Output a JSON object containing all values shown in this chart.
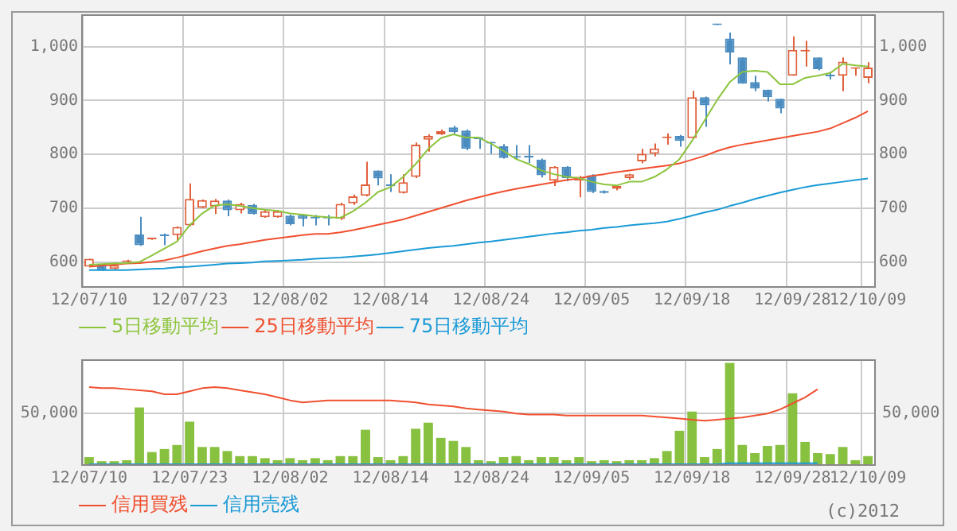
{
  "chart_data": [
    {
      "type": "candlestick",
      "categories": [
        "12/07/10",
        null,
        null,
        null,
        null,
        null,
        null,
        null,
        "12/07/23",
        null,
        null,
        null,
        null,
        null,
        null,
        null,
        "12/08/02",
        null,
        null,
        null,
        null,
        null,
        null,
        null,
        "12/08/14",
        null,
        null,
        null,
        null,
        null,
        null,
        null,
        "12/08/24",
        null,
        null,
        null,
        null,
        null,
        null,
        null,
        "12/09/05",
        null,
        null,
        null,
        null,
        null,
        null,
        null,
        "12/09/18",
        null,
        null,
        null,
        null,
        null,
        null,
        null,
        "12/09/28",
        null,
        null,
        null,
        null,
        null,
        "12/10/09"
      ],
      "ohlc": [
        [
          591,
          606,
          591,
          606
        ],
        [
          596,
          596,
          583,
          585
        ],
        [
          587,
          599,
          586,
          594
        ],
        [
          600,
          604,
          598,
          602
        ],
        [
          651,
          684,
          630,
          631
        ],
        [
          642,
          645,
          641,
          644
        ],
        [
          650,
          653,
          631,
          648
        ],
        [
          650,
          666,
          639,
          665
        ],
        [
          668,
          746,
          666,
          717
        ],
        [
          701,
          716,
          700,
          715
        ],
        [
          703,
          717,
          689,
          714
        ],
        [
          714,
          716,
          685,
          696
        ],
        [
          696,
          710,
          690,
          708
        ],
        [
          706,
          708,
          688,
          689
        ],
        [
          683,
          696,
          682,
          694
        ],
        [
          683,
          696,
          682,
          694
        ],
        [
          686,
          688,
          668,
          670
        ],
        [
          687,
          688,
          666,
          680
        ],
        [
          683,
          687,
          668,
          681
        ],
        [
          683,
          687,
          668,
          681
        ],
        [
          680,
          710,
          678,
          708
        ],
        [
          709,
          725,
          706,
          722
        ],
        [
          723,
          786,
          722,
          744
        ],
        [
          770,
          770,
          742,
          755
        ],
        [
          743,
          763,
          730,
          741
        ],
        [
          728,
          763,
          727,
          748
        ],
        [
          758,
          822,
          756,
          818
        ],
        [
          827,
          837,
          805,
          834
        ],
        [
          837,
          846,
          836,
          843
        ],
        [
          850,
          853,
          838,
          841
        ],
        [
          844,
          846,
          808,
          810
        ],
        [
          830,
          832,
          810,
          828
        ],
        [
          822,
          823,
          801,
          820
        ],
        [
          815,
          819,
          792,
          793
        ],
        [
          796,
          817,
          791,
          794
        ],
        [
          797,
          817,
          784,
          794
        ],
        [
          790,
          792,
          757,
          761
        ],
        [
          751,
          778,
          741,
          777
        ],
        [
          777,
          778,
          750,
          756
        ],
        [
          751,
          760,
          720,
          758
        ],
        [
          761,
          763,
          728,
          730
        ],
        [
          732,
          733,
          727,
          728
        ],
        [
          736,
          742,
          733,
          741
        ],
        [
          756,
          764,
          753,
          763
        ],
        [
          787,
          810,
          783,
          801
        ],
        [
          801,
          820,
          796,
          811
        ],
        [
          830,
          839,
          818,
          832
        ],
        [
          834,
          836,
          814,
          825
        ],
        [
          830,
          918,
          829,
          906
        ],
        [
          906,
          907,
          851,
          891
        ],
        [
          1041,
          1041,
          1040,
          1040
        ],
        [
          1015,
          1026,
          967,
          989
        ],
        [
          980,
          980,
          931,
          931
        ],
        [
          934,
          946,
          917,
          922
        ],
        [
          920,
          920,
          898,
          906
        ],
        [
          903,
          903,
          876,
          885
        ],
        [
          946,
          1019,
          946,
          994
        ],
        [
          991,
          1011,
          963,
          993
        ],
        [
          980,
          980,
          956,
          958
        ],
        [
          946,
          953,
          939,
          945
        ],
        [
          946,
          980,
          917,
          972
        ],
        [
          959,
          961,
          946,
          960
        ],
        [
          942,
          971,
          932,
          961
        ]
      ],
      "series": [
        {
          "name": "5日移動平均",
          "type": "line",
          "color": "#8cc43c",
          "values": [
            595,
            596,
            597,
            598,
            600,
            612,
            625,
            638,
            668,
            690,
            705,
            707,
            704,
            700,
            697,
            695,
            690,
            688,
            685,
            683,
            682,
            694,
            710,
            730,
            739,
            758,
            782,
            810,
            830,
            837,
            831,
            831,
            820,
            806,
            791,
            782,
            770,
            763,
            758,
            756,
            749,
            744,
            742,
            749,
            749,
            758,
            772,
            791,
            825,
            863,
            901,
            934,
            953,
            955,
            953,
            930,
            930,
            942,
            946,
            951,
            968,
            965,
            963
          ]
        },
        {
          "name": "25日移動平均",
          "type": "line",
          "color": "#f05030",
          "values": [
            591,
            593,
            595,
            597,
            598,
            600,
            603,
            608,
            614,
            620,
            625,
            630,
            633,
            637,
            641,
            644,
            647,
            650,
            652,
            652,
            655,
            659,
            664,
            669,
            674,
            679,
            686,
            693,
            700,
            707,
            714,
            720,
            726,
            731,
            736,
            740,
            744,
            748,
            752,
            755,
            760,
            763,
            767,
            770,
            773,
            776,
            779,
            783,
            790,
            797,
            806,
            813,
            818,
            822,
            826,
            830,
            834,
            838,
            842,
            848,
            858,
            868,
            880
          ]
        },
        {
          "name": "75日移動平均",
          "type": "line",
          "color": "#1a9ad6",
          "values": [
            585,
            585,
            585,
            585,
            586,
            587,
            588,
            590,
            591,
            593,
            595,
            597,
            598,
            599,
            601,
            602,
            603,
            604,
            606,
            607,
            608,
            610,
            612,
            614,
            617,
            620,
            623,
            626,
            628,
            630,
            633,
            636,
            638,
            641,
            644,
            647,
            650,
            653,
            655,
            658,
            660,
            663,
            665,
            668,
            670,
            672,
            675,
            680,
            686,
            692,
            697,
            704,
            710,
            717,
            723,
            729,
            734,
            739,
            743,
            746,
            749,
            752,
            755
          ]
        }
      ],
      "ylim": [
        555,
        1060
      ],
      "yticks": [
        600,
        700,
        800,
        900,
        {
          "value": 1000,
          "label": "1,000"
        }
      ],
      "y2lim": [
        555,
        1060
      ],
      "y2ticks": [
        600,
        700,
        800,
        900,
        {
          "value": 1000,
          "label": "1,000"
        }
      ],
      "grid": true,
      "legend": "bottom"
    },
    {
      "type": "bar",
      "categories": [
        "12/07/10",
        null,
        null,
        null,
        null,
        null,
        null,
        null,
        "12/07/23",
        null,
        null,
        null,
        null,
        null,
        null,
        null,
        "12/08/02",
        null,
        null,
        null,
        null,
        null,
        null,
        null,
        "12/08/14",
        null,
        null,
        null,
        null,
        null,
        null,
        null,
        "12/08/24",
        null,
        null,
        null,
        null,
        null,
        null,
        null,
        "12/09/05",
        null,
        null,
        null,
        null,
        null,
        null,
        null,
        "12/09/18",
        null,
        null,
        null,
        null,
        null,
        null,
        null,
        "12/09/28",
        null,
        null,
        null,
        null,
        null,
        "12/10/09"
      ],
      "series": [
        {
          "type": "bar",
          "color": "#88c040",
          "values": [
            7000,
            3000,
            3000,
            4000,
            56000,
            12000,
            15000,
            19000,
            42000,
            17000,
            17000,
            13000,
            8000,
            8000,
            6000,
            4000,
            6000,
            4000,
            6000,
            4000,
            8000,
            8000,
            34000,
            7000,
            4000,
            8000,
            35000,
            41000,
            26000,
            23000,
            17000,
            4000,
            3000,
            7000,
            8000,
            4000,
            7000,
            7000,
            4000,
            7000,
            3000,
            4000,
            3000,
            4000,
            4000,
            6000,
            13000,
            33000,
            52000,
            7000,
            15000,
            100000,
            19000,
            11000,
            18000,
            19000,
            70000,
            22000,
            11000,
            10000,
            17000,
            4000,
            8000
          ]
        },
        {
          "name": "信用買残",
          "type": "line",
          "color": "#f05030",
          "values": [
            76000,
            75000,
            75000,
            74000,
            73000,
            72000,
            69000,
            69000,
            72000,
            75000,
            76000,
            75000,
            73000,
            71000,
            69000,
            66000,
            63000,
            61000,
            62000,
            63000,
            63000,
            63000,
            63000,
            63000,
            63000,
            62000,
            61000,
            59000,
            58000,
            57000,
            55000,
            54000,
            53000,
            52000,
            50000,
            49000,
            49000,
            49000,
            48000,
            48000,
            48000,
            48000,
            48000,
            48000,
            48000,
            47000,
            46000,
            45000,
            44000,
            43000,
            44000,
            45000,
            46000,
            48000,
            50000,
            54000,
            60000,
            66000,
            74000,
            null,
            null,
            null,
            null
          ]
        },
        {
          "name": "信用売残",
          "type": "line",
          "color": "#1a9ad6",
          "values": [
            0,
            0,
            0,
            0,
            0,
            0,
            0,
            0,
            0,
            0,
            0,
            0,
            0,
            0,
            0,
            0,
            0,
            0,
            0,
            0,
            0,
            0,
            0,
            0,
            0,
            0,
            0,
            0,
            0,
            0,
            0,
            0,
            0,
            0,
            0,
            0,
            0,
            0,
            0,
            0,
            0,
            0,
            0,
            0,
            0,
            0,
            0,
            0,
            0,
            0,
            0,
            1000,
            1000,
            1000,
            1000,
            1000,
            1000,
            1000,
            1000,
            null,
            null,
            null,
            null
          ]
        }
      ],
      "ylim": [
        0,
        103500
      ],
      "yticks": [
        {
          "value": 50000,
          "label": "50,000"
        }
      ],
      "grid": true,
      "legend": "bottom",
      "annotations": [
        "(c)2012"
      ]
    }
  ]
}
